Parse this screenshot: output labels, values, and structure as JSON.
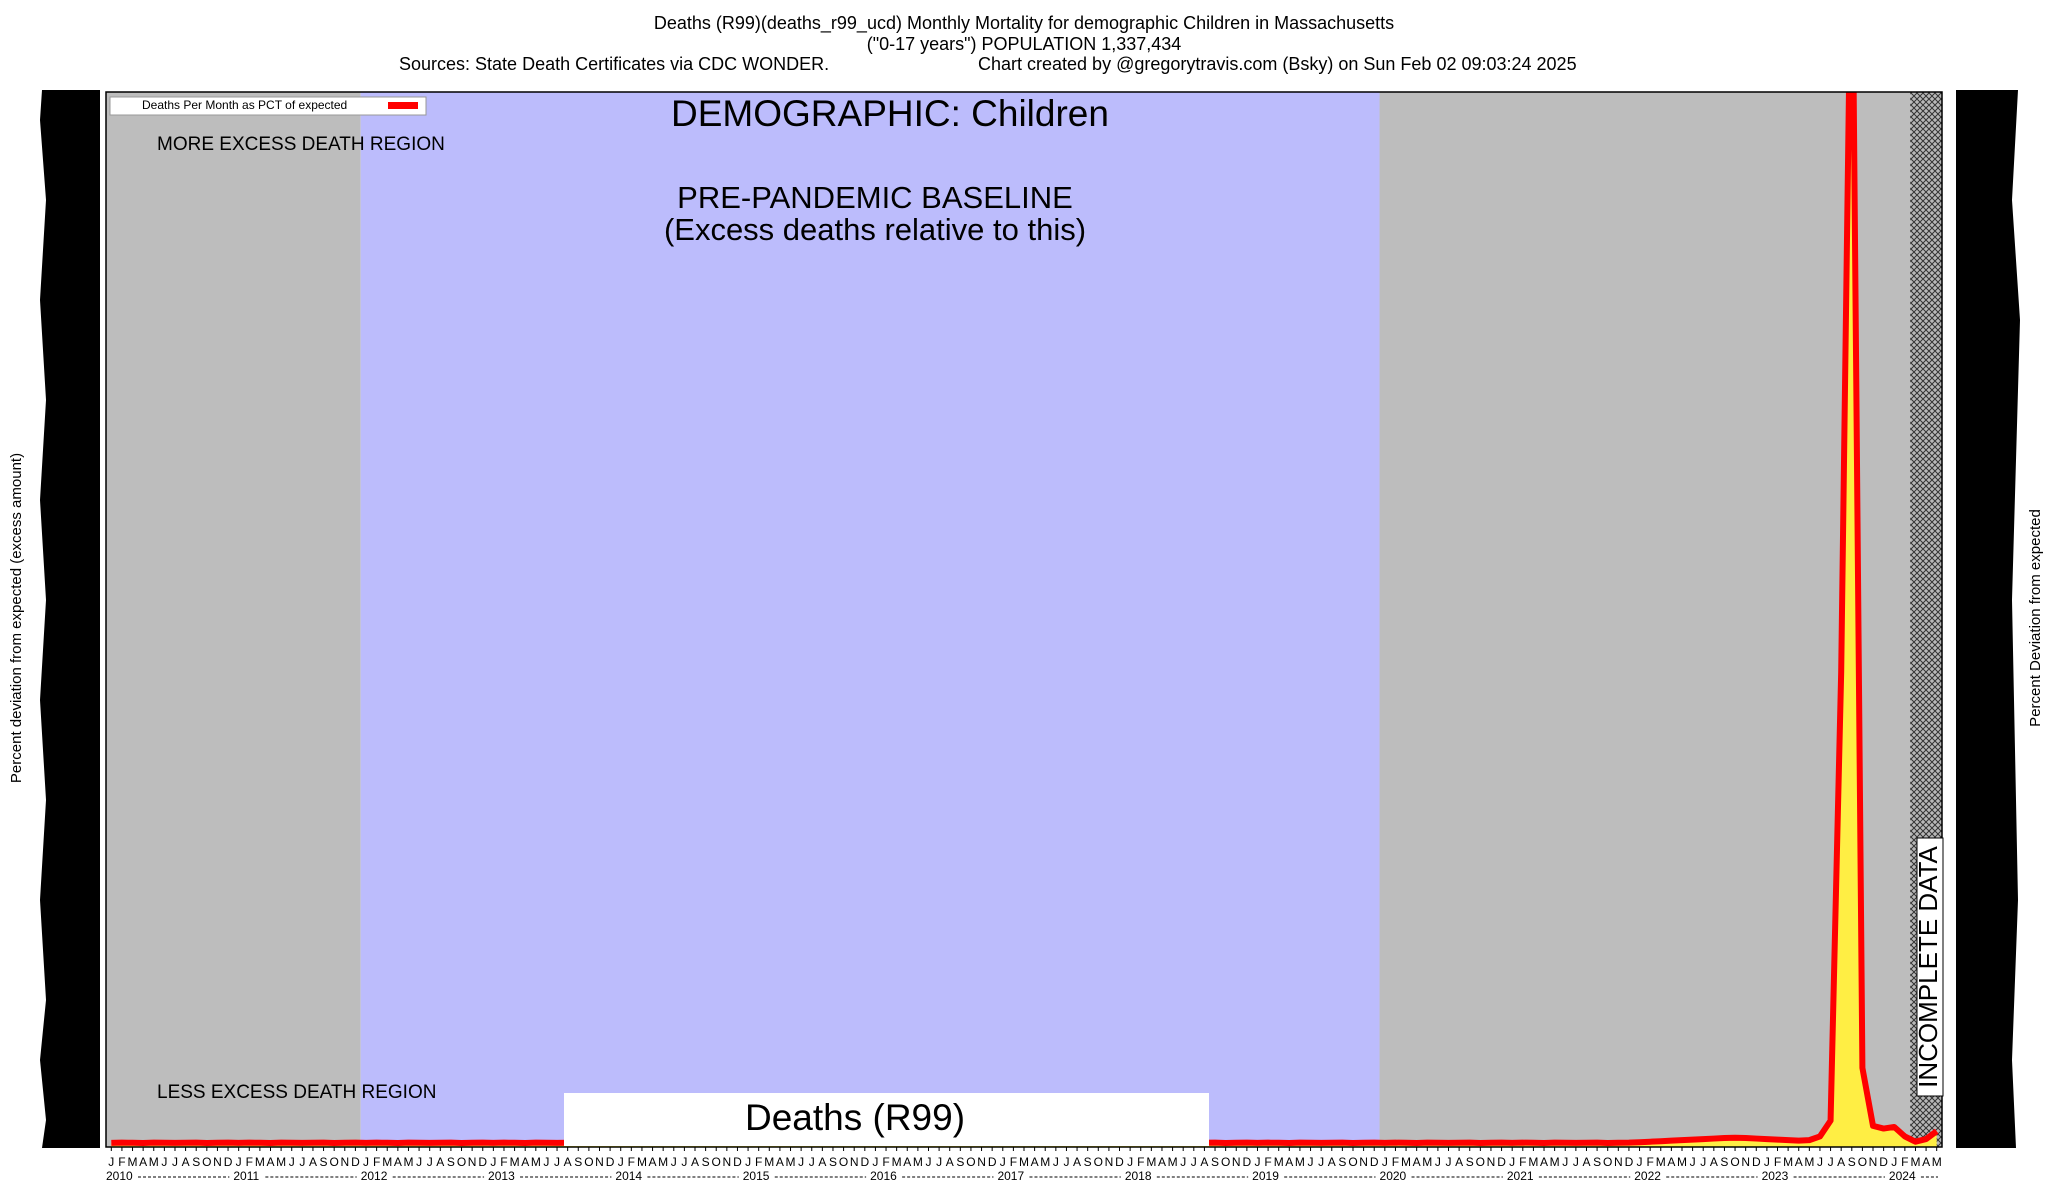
{
  "chart_data": {
    "type": "line",
    "title": "Deaths (R99)(deaths_r99_ucd) Monthly Mortality for demographic Children in Massachusetts",
    "subtitle": "(\"0-17 years\") POPULATION 1,337,434",
    "source": "Sources: State Death Certificates via CDC WONDER.",
    "credit": "Chart created by @gregorytravis.com (Bsky) on Sun Feb 02 09:03:24 2025",
    "ylabel": "Percent deviation from expected (excess amount)",
    "y2label": "Percent Deviation from expected",
    "annotations": {
      "demographic": "DEMOGRAPHIC: Children",
      "more": "MORE EXCESS DEATH REGION",
      "less": "LESS EXCESS DEATH REGION",
      "baseline": "PRE-PANDEMIC BASELINE",
      "baseline_note": "(Excess deaths relative to this)",
      "cause": "Deaths (R99)",
      "incomplete": "INCOMPLETE DATA"
    },
    "years": [
      "2010",
      "2011",
      "2012",
      "2013",
      "2014",
      "2015",
      "2016",
      "2017",
      "2018",
      "2019",
      "2020",
      "2021",
      "2022",
      "2023",
      "2024"
    ],
    "categories": [
      "J",
      "F",
      "M",
      "A",
      "M",
      "J",
      "J",
      "A",
      "S",
      "O",
      "N",
      "D",
      "J",
      "F",
      "M",
      "A",
      "M",
      "J",
      "J",
      "A",
      "S",
      "O",
      "N",
      "D",
      "J",
      "F",
      "M",
      "A",
      "M",
      "J",
      "J",
      "A",
      "S",
      "O",
      "N",
      "D",
      "J",
      "F",
      "M",
      "A",
      "M",
      "J",
      "J",
      "A",
      "S",
      "O",
      "N",
      "D",
      "J",
      "F",
      "M",
      "A",
      "M",
      "J",
      "J",
      "A",
      "S",
      "O",
      "N",
      "D",
      "J",
      "F",
      "M",
      "A",
      "M",
      "J",
      "J",
      "A",
      "S",
      "O",
      "N",
      "D",
      "J",
      "F",
      "M",
      "A",
      "M",
      "J",
      "J",
      "A",
      "S",
      "O",
      "N",
      "D",
      "J",
      "F",
      "M",
      "A",
      "M",
      "J",
      "J",
      "A",
      "S",
      "O",
      "N",
      "D",
      "J",
      "F",
      "M",
      "A",
      "M",
      "J",
      "J",
      "A",
      "S",
      "O",
      "N",
      "D",
      "J",
      "F",
      "M",
      "A",
      "M",
      "J",
      "J",
      "A",
      "S",
      "O",
      "N",
      "D",
      "J",
      "F",
      "M",
      "A",
      "M",
      "J",
      "J",
      "A",
      "S",
      "O",
      "N",
      "D",
      "J",
      "F",
      "M",
      "A",
      "M",
      "J",
      "J",
      "A",
      "S",
      "O",
      "N",
      "D",
      "J",
      "F",
      "M",
      "A",
      "M",
      "J",
      "J",
      "A",
      "S",
      "O",
      "N",
      "D",
      "J",
      "F",
      "M",
      "A",
      "M",
      "J",
      "J",
      "A",
      "S",
      "O",
      "N",
      "D",
      "J",
      "F",
      "M",
      "A",
      "M"
    ],
    "series": [
      {
        "name": "Deaths Per Month as PCT of expected",
        "color": "#ff0000",
        "fill": "#ffee44",
        "values": [
          78,
          82,
          80,
          76,
          84,
          80,
          79,
          81,
          83,
          77,
          80,
          82,
          78,
          82,
          80,
          76,
          84,
          80,
          79,
          81,
          83,
          77,
          80,
          82,
          78,
          82,
          80,
          76,
          84,
          80,
          79,
          81,
          83,
          77,
          80,
          82,
          78,
          82,
          80,
          76,
          84,
          80,
          79,
          81,
          83,
          77,
          80,
          82,
          78,
          82,
          80,
          76,
          84,
          80,
          79,
          81,
          83,
          77,
          80,
          82,
          78,
          82,
          80,
          76,
          84,
          80,
          79,
          81,
          83,
          77,
          80,
          82,
          78,
          82,
          80,
          76,
          84,
          80,
          79,
          81,
          83,
          77,
          80,
          82,
          78,
          82,
          80,
          76,
          84,
          80,
          79,
          81,
          83,
          77,
          80,
          82,
          78,
          82,
          80,
          76,
          84,
          80,
          79,
          81,
          83,
          77,
          80,
          82,
          78,
          82,
          80,
          76,
          84,
          80,
          79,
          81,
          83,
          77,
          80,
          82,
          78,
          82,
          80,
          76,
          84,
          80,
          79,
          81,
          83,
          77,
          80,
          82,
          78,
          82,
          80,
          76,
          84,
          80,
          79,
          81,
          83,
          77,
          80,
          82,
          90,
          100,
          110,
          120,
          130,
          140,
          150,
          160,
          170,
          175,
          170,
          160,
          150,
          140,
          130,
          120,
          130,
          200,
          500,
          9000,
          24000,
          1500,
          400,
          350,
          380,
          200,
          100,
          150,
          300
        ]
      }
    ],
    "ylim": [
      0,
      20000
    ],
    "regions": [
      {
        "from": 0,
        "to": 24,
        "color": "#bdbdbd"
      },
      {
        "from": 24,
        "to": 120,
        "color": "#bcbcfc"
      },
      {
        "from": 120,
        "to": 170,
        "color": "#bdbdbd"
      },
      {
        "from": 170,
        "to": 173,
        "color": "#888888",
        "pattern": "crosshatch"
      }
    ]
  }
}
